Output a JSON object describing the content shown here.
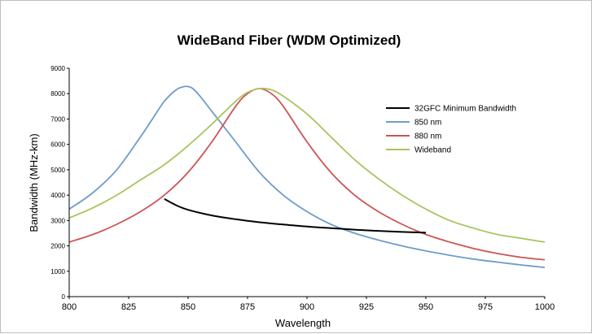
{
  "chart_data": {
    "type": "line",
    "title": "WideBand Fiber (WDM Optimized)",
    "xlabel": "Wavelength",
    "ylabel": "Bandwidth (MHz-km)",
    "xlim": [
      800,
      1000
    ],
    "ylim": [
      0,
      9000
    ],
    "x_ticks": [
      800,
      825,
      850,
      875,
      900,
      925,
      950,
      975,
      1000
    ],
    "y_ticks": [
      0,
      1000,
      2000,
      3000,
      4000,
      5000,
      6000,
      7000,
      8000,
      9000
    ],
    "grid": false,
    "legend_position": "right",
    "series": [
      {
        "name": "32GFC Minimum Bandwidth",
        "color": "#000000",
        "x": [
          840,
          845,
          850,
          860,
          870,
          880,
          890,
          900,
          910,
          920,
          930,
          940,
          950
        ],
        "y": [
          3850,
          3600,
          3420,
          3200,
          3050,
          2930,
          2840,
          2760,
          2700,
          2640,
          2590,
          2550,
          2520
        ]
      },
      {
        "name": "850 nm",
        "color": "#6e9ccc",
        "x": [
          800,
          810,
          820,
          830,
          835,
          840,
          845,
          848,
          850,
          852,
          855,
          860,
          870,
          880,
          890,
          900,
          910,
          920,
          930,
          940,
          950,
          960,
          970,
          980,
          990,
          1000
        ],
        "y": [
          3450,
          4100,
          5000,
          6300,
          7000,
          7700,
          8150,
          8270,
          8280,
          8200,
          7900,
          7300,
          6100,
          4900,
          4000,
          3350,
          2850,
          2500,
          2230,
          2000,
          1800,
          1630,
          1480,
          1360,
          1250,
          1150
        ]
      },
      {
        "name": "880 nm",
        "color": "#cc5555",
        "x": [
          800,
          810,
          820,
          830,
          840,
          850,
          860,
          870,
          875,
          880,
          885,
          890,
          900,
          910,
          920,
          930,
          940,
          950,
          960,
          970,
          980,
          990,
          1000
        ],
        "y": [
          2150,
          2450,
          2850,
          3350,
          4000,
          4900,
          6100,
          7500,
          8000,
          8200,
          8000,
          7500,
          6100,
          4900,
          4000,
          3350,
          2850,
          2450,
          2150,
          1900,
          1700,
          1550,
          1450
        ]
      },
      {
        "name": "Wideband",
        "color": "#a8c460",
        "x": [
          800,
          810,
          820,
          830,
          840,
          850,
          860,
          870,
          875,
          880,
          885,
          890,
          900,
          910,
          920,
          930,
          940,
          950,
          960,
          970,
          980,
          990,
          1000
        ],
        "y": [
          3100,
          3500,
          4000,
          4600,
          5200,
          5950,
          6800,
          7700,
          8050,
          8200,
          8150,
          7900,
          7200,
          6300,
          5400,
          4650,
          4000,
          3450,
          3000,
          2700,
          2450,
          2300,
          2150
        ]
      }
    ]
  }
}
